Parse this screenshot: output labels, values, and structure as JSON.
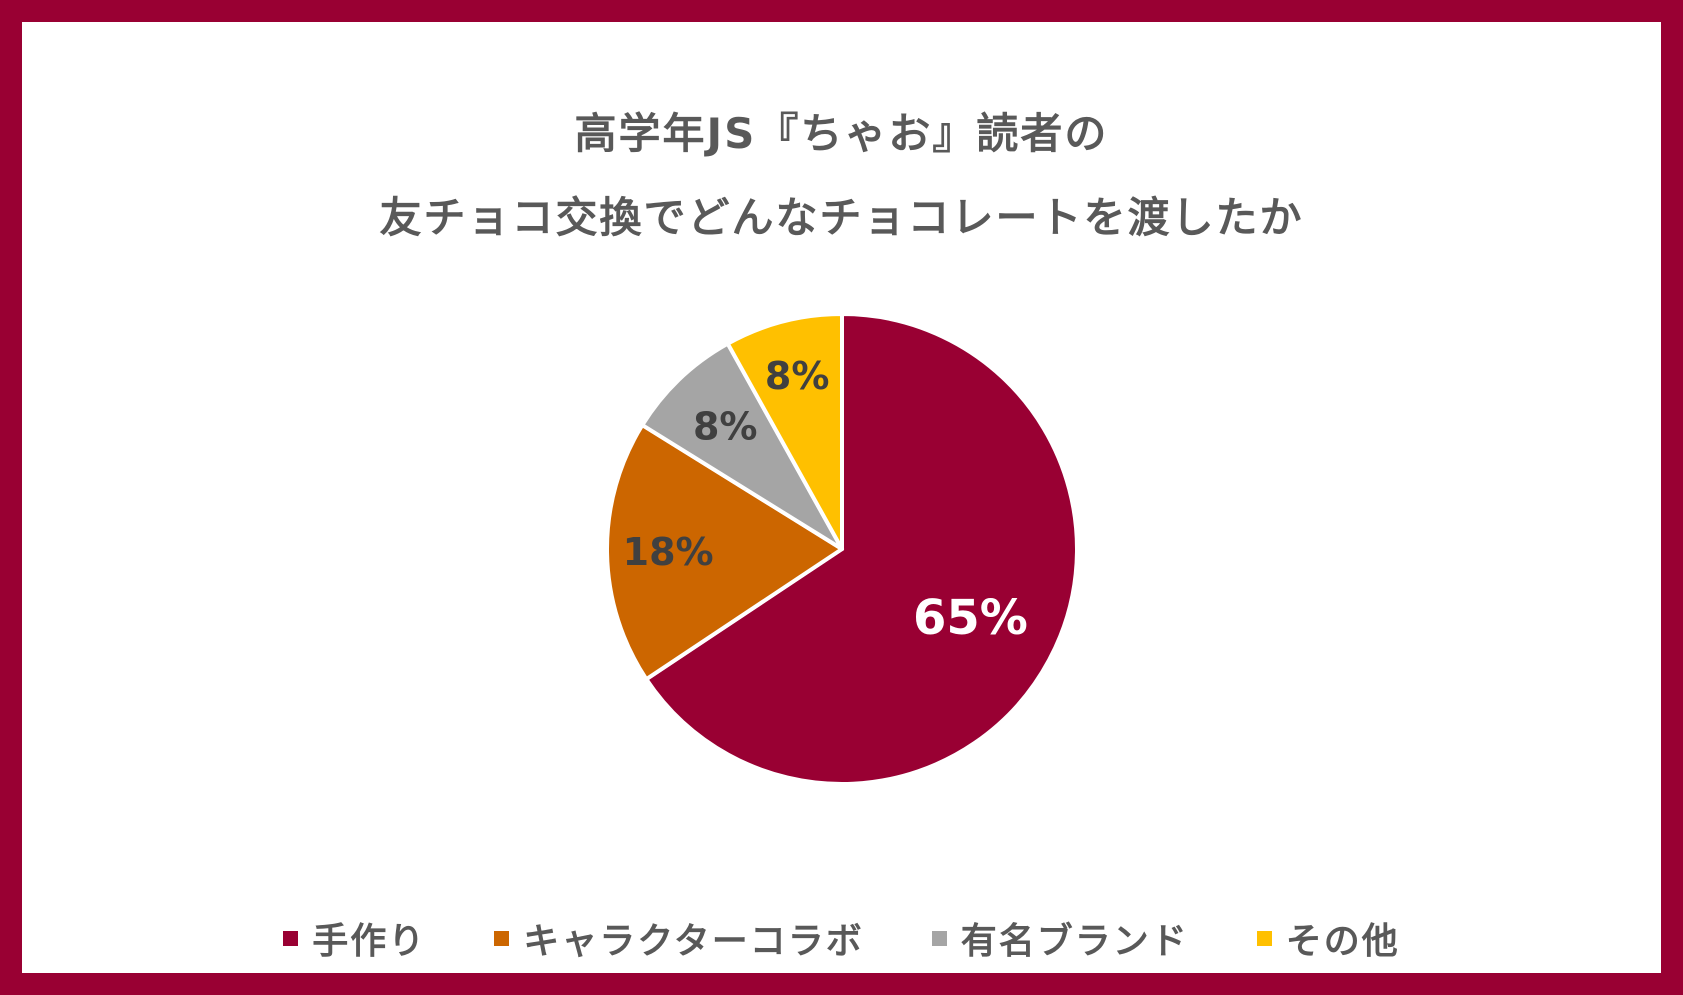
{
  "chart_data": {
    "type": "pie",
    "title": [
      "高学年JS『ちゃお』読者の",
      "友チョコ交換でどんなチョコレートを渡したか"
    ],
    "slices": [
      {
        "label": "手作り",
        "value": 65,
        "display": "65%",
        "color": "#990033",
        "text_color": "#FFFFFF"
      },
      {
        "label": "キャラクターコラボ",
        "value": 18,
        "display": "18%",
        "color": "#CC6600",
        "text_color": "#404040"
      },
      {
        "label": "有名ブランド",
        "value": 8,
        "display": "8%",
        "color": "#A5A5A5",
        "text_color": "#404040"
      },
      {
        "label": "その他",
        "value": 8,
        "display": "8%",
        "color": "#FFC000",
        "text_color": "#404040"
      }
    ],
    "start": "12 o'clock",
    "direction": "clockwise",
    "legend_position": "bottom"
  },
  "colors": {
    "frame": "#990033",
    "background": "#FFFFFF",
    "text": "#595959"
  }
}
